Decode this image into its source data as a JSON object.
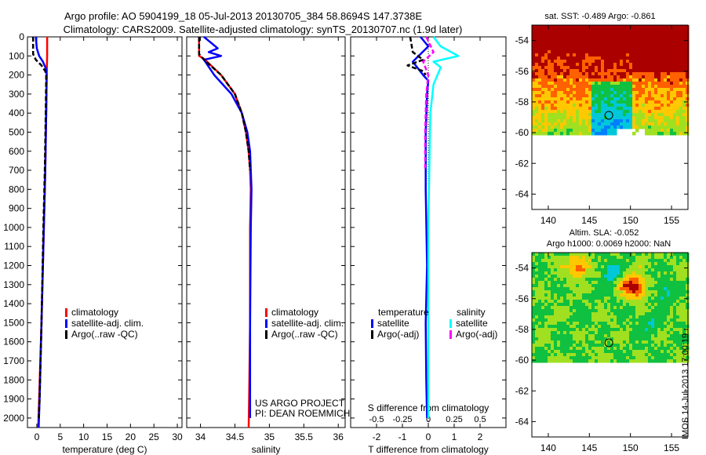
{
  "title_line1": "Argo profile: AO 5904199_18 05-Jul-2013 20130705_384 58.8694S 147.3738E",
  "title_line2": "Climatology: CARS2009. Satellite-adjusted climatology: synTS_20130707.nc (1.9d later)",
  "imos_stamp": "IMOS 14-Jul-2013 17:00:19",
  "chart_data": [
    {
      "type": "line",
      "panel": "temperature",
      "xlabel": "temperature (deg C)",
      "ylabel": "",
      "xlim": [
        -2,
        31
      ],
      "ylim": [
        2050,
        0
      ],
      "xticks": [
        0,
        5,
        10,
        15,
        20,
        25,
        30
      ],
      "yticks": [
        0,
        100,
        200,
        300,
        400,
        500,
        600,
        700,
        800,
        900,
        1000,
        1100,
        1200,
        1300,
        1400,
        1500,
        1600,
        1700,
        1800,
        1900,
        2000
      ],
      "legend": [
        "climatology",
        "satellite-adj. clim.",
        "Argo(..raw -QC)"
      ],
      "series": [
        {
          "name": "climatology",
          "color": "#ff0000",
          "style": "solid",
          "x": [
            2.2,
            2.2,
            2.1,
            2.0,
            1.8,
            1.5,
            1.0,
            0.5,
            0.3
          ],
          "y": [
            0,
            100,
            200,
            400,
            700,
            1000,
            1500,
            1900,
            2050
          ]
        },
        {
          "name": "satellite-adj. clim.",
          "color": "#0000ff",
          "style": "solid",
          "x": [
            -0.2,
            0.0,
            0.5,
            1.3,
            2.0,
            2.1,
            2.0,
            1.8,
            1.5,
            1.0,
            0.6,
            0.4
          ],
          "y": [
            0,
            60,
            100,
            130,
            170,
            200,
            400,
            700,
            1000,
            1500,
            1900,
            2050
          ]
        },
        {
          "name": "Argo(..raw -QC)",
          "color": "#000000",
          "style": "dashed",
          "x": [
            -0.8,
            -0.8,
            -0.2,
            1.0,
            1.8,
            2.0,
            1.9,
            1.7,
            1.4,
            1.0,
            0.6,
            0.4
          ],
          "y": [
            0,
            90,
            120,
            150,
            180,
            200,
            400,
            700,
            1000,
            1500,
            1900,
            2000
          ]
        }
      ]
    },
    {
      "type": "line",
      "panel": "salinity",
      "xlabel": "salinity",
      "xlim": [
        33.8,
        36.1
      ],
      "ylim": [
        2050,
        0
      ],
      "xticks": [
        34,
        34.5,
        35,
        35.5,
        36
      ],
      "legend": [
        "climatology",
        "satellite-adj. clim.",
        "Argo(..raw -QC)"
      ],
      "annotations": [
        "US ARGO PROJECT",
        "PI: DEAN ROEMMICH"
      ],
      "series": [
        {
          "name": "climatology",
          "color": "#ff0000",
          "style": "solid",
          "x": [
            33.98,
            33.98,
            34.05,
            34.3,
            34.5,
            34.6,
            34.66,
            34.7,
            34.72,
            34.73,
            34.72,
            34.72,
            34.71,
            34.7
          ],
          "y": [
            0,
            100,
            115,
            200,
            300,
            400,
            500,
            600,
            700,
            800,
            1000,
            1500,
            1800,
            2050
          ]
        },
        {
          "name": "satellite-adj. clim.",
          "color": "#0000ff",
          "style": "solid",
          "x": [
            34.05,
            34.25,
            34.12,
            34.3,
            34.05,
            34.2,
            34.45,
            34.6,
            34.68,
            34.72,
            34.73,
            34.74,
            34.73,
            34.72,
            34.72
          ],
          "y": [
            0,
            60,
            80,
            100,
            120,
            200,
            300,
            400,
            500,
            600,
            700,
            800,
            1000,
            1500,
            2000
          ]
        },
        {
          "name": "Argo(..raw -QC)",
          "color": "#000000",
          "style": "dashed",
          "x": [
            33.98,
            33.98,
            34.05,
            34.3,
            34.5,
            34.6,
            34.66,
            34.7,
            34.72
          ],
          "y": [
            0,
            90,
            120,
            200,
            300,
            400,
            500,
            600,
            700
          ]
        }
      ]
    },
    {
      "type": "line",
      "panel": "differences",
      "xlabel": "T difference from climatology",
      "xlim": [
        -3,
        3
      ],
      "ylim": [
        2050,
        0
      ],
      "xticks": [
        -2,
        -1,
        0,
        1,
        2
      ],
      "top_label": "S difference from climatology",
      "top_xticks": [
        -0.5,
        -0.25,
        0,
        0.25,
        0.5
      ],
      "top_xlim": [
        -0.75,
        0.75
      ],
      "legend_temperature_title": "temperature",
      "legend_salinity_title": "salinity",
      "legend": [
        "satellite",
        "Argo(-adj)",
        "satellite",
        "Argo(-adj)"
      ],
      "series": [
        {
          "name": "satellite",
          "quantity": "temperature",
          "color": "#0000ff",
          "style": "solid",
          "x": [
            -0.3,
            0.0,
            -0.3,
            -0.6,
            -0.2,
            0.0,
            -0.05,
            -0.1,
            -0.1,
            -0.05,
            -0.1,
            -0.08,
            -0.05
          ],
          "y": [
            0,
            50,
            90,
            130,
            200,
            230,
            300,
            500,
            800,
            1200,
            1500,
            1800,
            2000
          ]
        },
        {
          "name": "Argo(-adj)",
          "quantity": "temperature",
          "color": "#000000",
          "style": "dashed",
          "x": [
            -0.7,
            -0.6,
            -0.2,
            -0.8,
            -0.2,
            -0.1
          ],
          "y": [
            0,
            80,
            120,
            150,
            180,
            200
          ]
        },
        {
          "name": "satellite",
          "quantity": "salinity",
          "color": "#00ffff",
          "style": "solid",
          "x": [
            0.05,
            0.12,
            0.29,
            0.05,
            0.12,
            0.05,
            0.02,
            0.01,
            0.0,
            0.0
          ],
          "y": [
            0,
            50,
            100,
            130,
            160,
            250,
            400,
            700,
            1000,
            2000
          ]
        },
        {
          "name": "Argo(-adj)",
          "quantity": "salinity",
          "color": "#ff00ff",
          "style": "dashed",
          "x": [
            -0.02,
            0.05,
            -0.05,
            0.0,
            -0.02,
            -0.03,
            -0.03
          ],
          "y": [
            0,
            80,
            130,
            200,
            300,
            500,
            700
          ]
        }
      ]
    },
    {
      "type": "heatmap",
      "panel": "satellite SST map",
      "title": "sat. SST: -0.489 Argo: -0.861",
      "xlim": [
        138,
        157
      ],
      "ylim": [
        -65,
        -53
      ],
      "xticks": [
        140,
        145,
        150,
        155
      ],
      "yticks": [
        -54,
        -56,
        -58,
        -60,
        -62,
        -64
      ],
      "argo_position": {
        "lon": 147.37,
        "lat": -58.87
      }
    },
    {
      "type": "heatmap",
      "panel": "altimetry SLA map",
      "title_line1": "Altim. SLA: -0.052",
      "title_line2": "Argo h1000: 0.0069 h2000: NaN",
      "xlim": [
        138,
        157
      ],
      "ylim": [
        -65,
        -53
      ],
      "xticks": [
        140,
        145,
        150,
        155
      ],
      "yticks": [
        -54,
        -56,
        -58,
        -60,
        -62,
        -64
      ],
      "argo_position": {
        "lon": 147.37,
        "lat": -58.87
      }
    }
  ]
}
